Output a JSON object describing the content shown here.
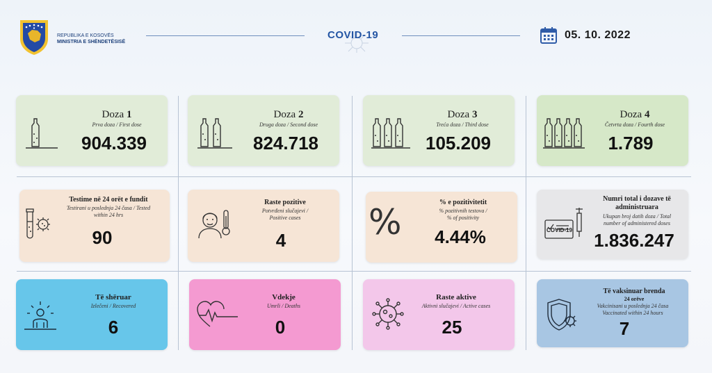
{
  "header": {
    "ministry_line1": "REPUBLIKA E KOSOVËS",
    "ministry_line2": "MINISTRIA E SHËNDETËSISË",
    "center_title": "COVID-19",
    "date": "05. 10. 2022"
  },
  "doses": [
    {
      "title_word": "Doza",
      "title_num": "1",
      "subtitle": "Prva doza / First dose",
      "value": "904.339"
    },
    {
      "title_word": "Doza",
      "title_num": "2",
      "subtitle": "Druga doza / Second dose",
      "value": "824.718"
    },
    {
      "title_word": "Doza",
      "title_num": "3",
      "subtitle": "Treća doza / Third dose",
      "value": "105.209"
    },
    {
      "title_word": "Doza",
      "title_num": "4",
      "subtitle": "Četvrta doza / Fourth dose",
      "value": "1.789"
    }
  ],
  "row2": [
    {
      "title": "Testime në 24 orët e fundit",
      "subtitle_1": "Testirani u poslednja 24 časa / Tested",
      "subtitle_2": "within 24 hrs",
      "value": "90"
    },
    {
      "title": "Raste pozitive",
      "subtitle_1": "Potvrđeni slučajevi /",
      "subtitle_2": "Positive cases",
      "value": "4"
    },
    {
      "title": "% e pozitivitetit",
      "subtitle_1": "% pozitivnih testova /",
      "subtitle_2": "% of positivity",
      "value": "4.44%"
    },
    {
      "title_1": "Numri total i dozave të",
      "title_2": "administruara",
      "subtitle_1": "Ukupan broj datih doza / Total",
      "subtitle_2": "number of administered doses",
      "value": "1.836.247",
      "badge": "COVID-19"
    }
  ],
  "row3": [
    {
      "title": "Të shëruar",
      "subtitle": "Izlečeni / Recovered",
      "value": "6"
    },
    {
      "title": "Vdekje",
      "subtitle": "Umrli / Deaths",
      "value": "0"
    },
    {
      "title": "Raste aktive",
      "subtitle": "Aktivni slučajevi / Active cases",
      "value": "25"
    },
    {
      "title_1": "Të vaksinuar brenda",
      "title_2": "24 orëve",
      "subtitle_1": "Vakcinisani u poslednja 24 časa",
      "subtitle_2": "Vaccinated within 24 hours",
      "value": "7"
    }
  ],
  "percent_symbol": "%",
  "colors": {
    "accent": "#2455a4",
    "blue_card": "#67c6ea",
    "pink_card": "#f49ad1",
    "lilac_card": "#f3c7ea",
    "steel_card": "#a8c6e3",
    "green_card": "#e1ecd8",
    "peach_card": "#f6e5d6"
  },
  "icons": [
    "kosovo-coat-of-arms",
    "calendar-icon",
    "vial-icon",
    "test-tube-virus-icon",
    "sick-person-thermometer-icon",
    "percent-icon",
    "vaccination-certificate-syringe-icon",
    "recovered-person-icon",
    "heartbeat-icon",
    "virus-icon",
    "shield-virus-icon"
  ]
}
